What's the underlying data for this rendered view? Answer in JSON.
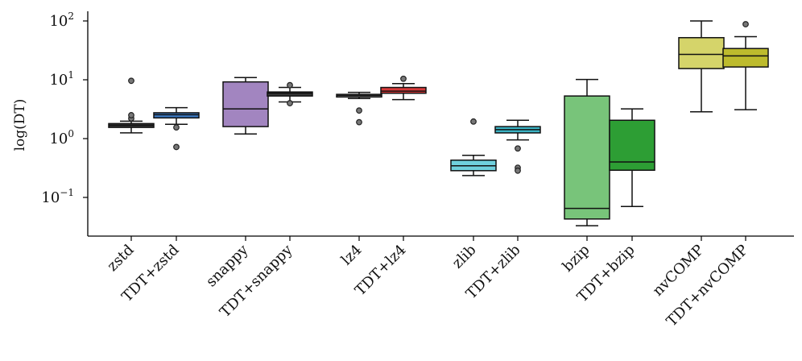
{
  "chart_data": {
    "type": "box",
    "title": "",
    "xlabel": "",
    "ylabel": "log(DT)",
    "yscale": "log",
    "ylim": [
      0.02,
      160
    ],
    "yticks": [
      {
        "value": 0.1,
        "base": "10",
        "exp": "−1"
      },
      {
        "value": 1,
        "base": "10",
        "exp": "0"
      },
      {
        "value": 10,
        "base": "10",
        "exp": "1"
      },
      {
        "value": 100,
        "base": "10",
        "exp": "2"
      }
    ],
    "grid": false,
    "boxes": [
      {
        "label": "zstd",
        "color": "#3a3a3a",
        "q1": 1.55,
        "median": 1.68,
        "q3": 1.8,
        "whisker_low": 1.25,
        "whisker_high": 1.98,
        "fliers": [
          2.2,
          2.5,
          9.6
        ]
      },
      {
        "label": "TDT+zstd",
        "color": "#3b78c2",
        "q1": 2.25,
        "median": 2.55,
        "q3": 2.75,
        "whisker_low": 1.75,
        "whisker_high": 3.35,
        "fliers": [
          1.55,
          0.72
        ]
      },
      {
        "label": "snappy",
        "color": "#a285c0",
        "q1": 1.6,
        "median": 3.2,
        "q3": 9.2,
        "whisker_low": 1.2,
        "whisker_high": 10.9,
        "fliers": []
      },
      {
        "label": "TDT+snappy",
        "color": "#3a3a3a",
        "q1": 5.3,
        "median": 5.9,
        "q3": 6.2,
        "whisker_low": 4.2,
        "whisker_high": 7.4,
        "fliers": [
          8.1,
          4.0
        ]
      },
      {
        "label": "lz4",
        "color": "#b9b9b9",
        "q1": 5.1,
        "median": 5.4,
        "q3": 5.65,
        "whisker_low": 4.8,
        "whisker_high": 6.1,
        "fliers": [
          3.0,
          1.9
        ]
      },
      {
        "label": "TDT+lz4",
        "color": "#d83a3a",
        "q1": 5.9,
        "median": 6.4,
        "q3": 7.4,
        "whisker_low": 4.6,
        "whisker_high": 8.6,
        "fliers": [
          10.4
        ]
      },
      {
        "label": "zlib",
        "color": "#6fd0dd",
        "q1": 0.285,
        "median": 0.345,
        "q3": 0.43,
        "whisker_low": 0.235,
        "whisker_high": 0.52,
        "fliers": [
          1.95
        ]
      },
      {
        "label": "TDT+zlib",
        "color": "#3bb3c4",
        "q1": 1.25,
        "median": 1.42,
        "q3": 1.6,
        "whisker_low": 0.95,
        "whisker_high": 2.05,
        "fliers": [
          0.68,
          0.32,
          0.285
        ]
      },
      {
        "label": "bzip",
        "color": "#78c47a",
        "q1": 0.043,
        "median": 0.065,
        "q3": 5.3,
        "whisker_low": 0.033,
        "whisker_high": 10.1,
        "fliers": []
      },
      {
        "label": "TDT+bzip",
        "color": "#2d9e34",
        "q1": 0.29,
        "median": 0.4,
        "q3": 2.05,
        "whisker_low": 0.07,
        "whisker_high": 3.2,
        "fliers": []
      },
      {
        "label": "nvCOMP",
        "color": "#d5d46a",
        "q1": 15.5,
        "median": 27,
        "q3": 52,
        "whisker_low": 2.85,
        "whisker_high": 100,
        "fliers": []
      },
      {
        "label": "TDT+nvCOMP",
        "color": "#bdbb2d",
        "q1": 16.5,
        "median": 25.5,
        "q3": 34,
        "whisker_low": 3.1,
        "whisker_high": 54,
        "fliers": [
          88
        ]
      }
    ]
  }
}
